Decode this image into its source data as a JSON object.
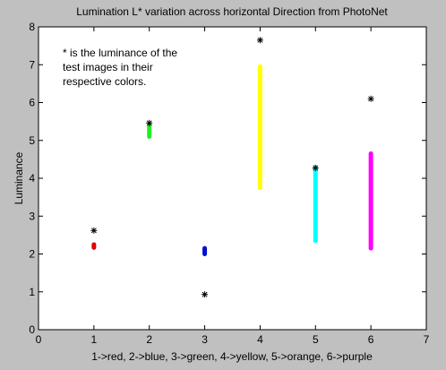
{
  "chart_data": {
    "type": "scatter",
    "title": "Lumination L* variation across horizontal Direction from PhotoNet",
    "xlabel": "1->red, 2->blue, 3->green, 4->yellow, 5->orange, 6->purple",
    "ylabel": "Luminance",
    "xlim": [
      0,
      7
    ],
    "ylim": [
      0,
      8
    ],
    "xticks": [
      "0",
      "1",
      "2",
      "3",
      "4",
      "5",
      "6",
      "7"
    ],
    "yticks": [
      "0",
      "1",
      "2",
      "3",
      "4",
      "5",
      "6",
      "7",
      "8"
    ],
    "grid": false,
    "annotation_lines": [
      "* is the luminance of the",
      "test images in their",
      "respective colors."
    ],
    "ranges": [
      {
        "x": 1,
        "ymin": 2.17,
        "ymax": 2.25,
        "color": "#e00000"
      },
      {
        "x": 2,
        "ymin": 5.1,
        "ymax": 5.4,
        "color": "#22ee22"
      },
      {
        "x": 3,
        "ymin": 2.0,
        "ymax": 2.15,
        "color": "#0010cc"
      },
      {
        "x": 4,
        "ymin": 3.75,
        "ymax": 6.95,
        "color": "#ffff00"
      },
      {
        "x": 5,
        "ymin": 2.35,
        "ymax": 4.3,
        "color": "#00ffff"
      },
      {
        "x": 6,
        "ymin": 2.15,
        "ymax": 4.65,
        "color": "#ff00ff"
      }
    ],
    "points": [
      {
        "x": 1,
        "y": 2.62
      },
      {
        "x": 2,
        "y": 5.46
      },
      {
        "x": 3,
        "y": 0.93
      },
      {
        "x": 4,
        "y": 7.65
      },
      {
        "x": 5,
        "y": 4.27
      },
      {
        "x": 6,
        "y": 6.1
      }
    ],
    "marker_color": "#000000",
    "axes_background": "#ffffff",
    "figure_background": "#c0c0c0"
  }
}
